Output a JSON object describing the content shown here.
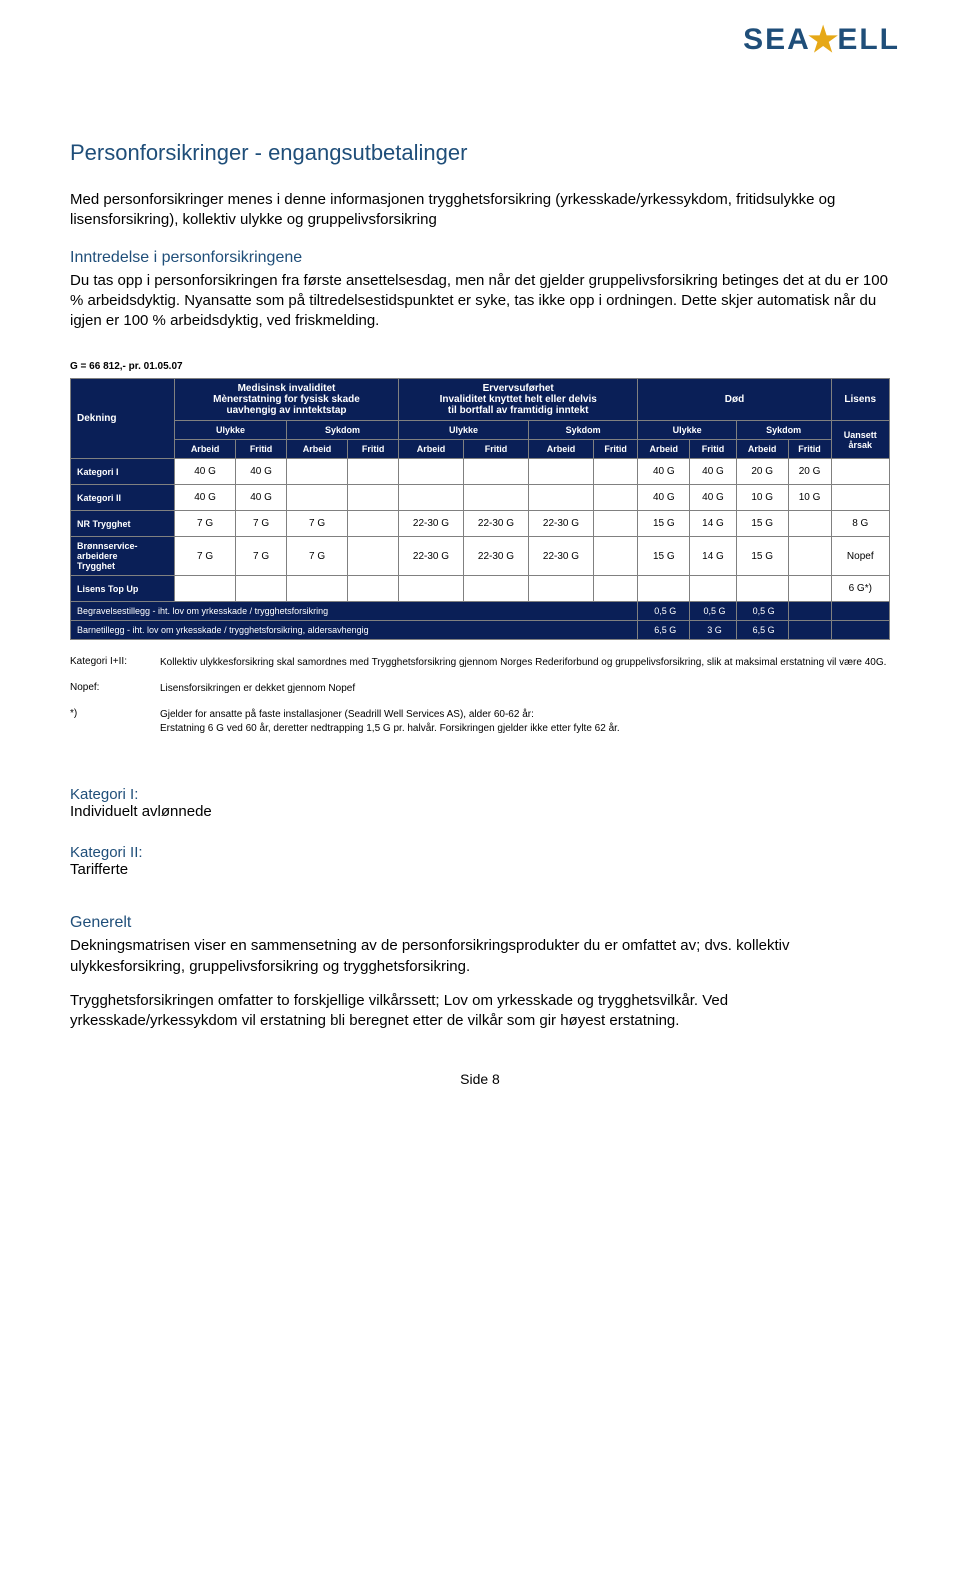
{
  "logo": {
    "prefix": "SEA",
    "suffix": "ELL"
  },
  "title": "Personforsikringer - engangsutbetalinger",
  "intro": "Med personforsikringer menes i denne informasjonen trygghetsforsikring (yrkesskade/yrkessykdom, fritidsulykke og lisensforsikring), kollektiv ulykke og gruppelivsforsikring",
  "sec1_title": "Inntredelse i personforsikringene",
  "sec1_body": "Du tas opp i personforsikringen fra første ansettelsesdag, men når det gjelder gruppelivsforsikring betinges det at du er 100 % arbeidsdyktig. Nyansatte som på tiltredelsestidspunktet er syke, tas ikke opp i ordningen. Dette skjer automatisk når du igjen er 100 % arbeidsdyktig, ved friskmelding.",
  "g_note": "G = 66 812,- pr. 01.05.07",
  "table": {
    "h_dekning": "Dekning",
    "h_med": "Medisinsk invaliditet\nMènerstatning for fysisk skade\nuavhengig av inntektstap",
    "h_erv": "Ervervsuførhet\nInvaliditet knyttet helt eller delvis\ntil bortfall av framtidig inntekt",
    "h_dod": "Død",
    "h_lisens": "Lisens",
    "h_ulykke": "Ulykke",
    "h_sykdom": "Sykdom",
    "h_uansett": "Uansett\nårsak",
    "h_arbeid": "Arbeid",
    "h_fritid": "Fritid",
    "rows": [
      {
        "label": "Kategori I",
        "c": [
          "40 G",
          "40 G",
          "",
          "",
          "",
          "",
          "",
          "",
          "40 G",
          "40 G",
          "20 G",
          "20 G",
          ""
        ]
      },
      {
        "label": "Kategori II",
        "c": [
          "40 G",
          "40 G",
          "",
          "",
          "",
          "",
          "",
          "",
          "40 G",
          "40 G",
          "10 G",
          "10 G",
          ""
        ]
      },
      {
        "label": "NR Trygghet",
        "c": [
          "7 G",
          "7 G",
          "7 G",
          "",
          "22-30 G",
          "22-30 G",
          "22-30 G",
          "",
          "15 G",
          "14 G",
          "15 G",
          "",
          "8 G"
        ]
      },
      {
        "label": "Brønnservice-\narbeidere\nTrygghet",
        "c": [
          "7 G",
          "7 G",
          "7 G",
          "",
          "22-30 G",
          "22-30 G",
          "22-30 G",
          "",
          "15 G",
          "14 G",
          "15 G",
          "",
          "Nopef"
        ]
      },
      {
        "label": "Lisens Top Up",
        "c": [
          "",
          "",
          "",
          "",
          "",
          "",
          "",
          "",
          "",
          "",
          "",
          "",
          "6 G*)"
        ]
      }
    ],
    "span1_label": "Begravelsestillegg - iht. lov om yrkesskade / trygghetsforsikring",
    "span1_vals": [
      "0,5 G",
      "0,5 G",
      "0,5 G",
      ""
    ],
    "span2_label": "Barnetillegg - iht. lov om yrkesskade / trygghetsforsikring, aldersavhengig",
    "span2_vals": [
      "6,5 G",
      "3 G",
      "6,5 G",
      ""
    ]
  },
  "footnotes": [
    {
      "label": "Kategori I+II:",
      "text": "Kollektiv ulykkesforsikring skal samordnes med Trygghetsforsikring gjennom Norges Rederiforbund og gruppelivsforsikring, slik at maksimal erstatning vil være 40G."
    },
    {
      "label": "Nopef:",
      "text": "Lisensforsikringen er dekket gjennom Nopef"
    },
    {
      "label": "*)",
      "text": "Gjelder for ansatte på faste installasjoner (Seadrill Well Services AS), alder 60-62 år:\nErstatning 6 G ved 60 år, deretter nedtrapping 1,5 G pr. halvår. Forsikringen gjelder ikke etter fylte 62 år."
    }
  ],
  "cat1_t": "Kategori I:",
  "cat1_b": "Individuelt avlønnede",
  "cat2_t": "Kategori II:",
  "cat2_b": "Tarifferte",
  "gen_t": "Generelt",
  "gen_p1": "Dekningsmatrisen viser en sammensetning av de personforsikringsprodukter du er omfattet av; dvs. kollektiv ulykkesforsikring, gruppelivsforsikring og trygghetsforsikring.",
  "gen_p2": "Trygghetsforsikringen omfatter to forskjellige vilkårssett; Lov om yrkesskade og trygghetsvilkår. Ved yrkesskade/yrkessykdom vil erstatning bli beregnet etter de vilkår som gir høyest erstatning.",
  "page_no": "Side 8"
}
